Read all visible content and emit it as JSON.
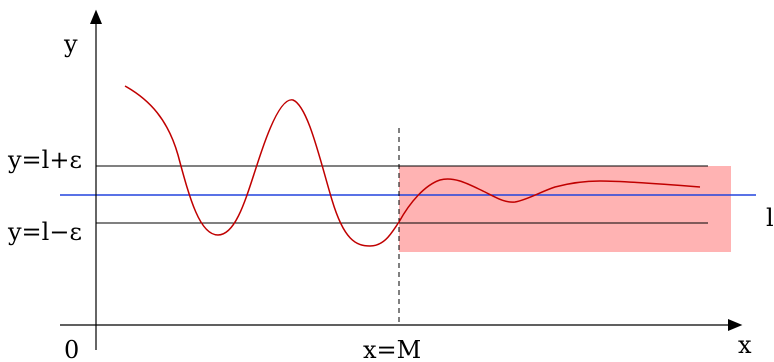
{
  "axes": {
    "y_label": "y",
    "x_label": "x",
    "origin_label": "0"
  },
  "bounds": {
    "upper_label": "y=l+ε",
    "lower_label": "y=l−ε",
    "limit_label": "l"
  },
  "threshold": {
    "label": "x=M"
  },
  "colors": {
    "curve": "#c00000",
    "limit_line": "#2244dd",
    "band_fill": "#ffb3b3",
    "axis": "#000000"
  }
}
